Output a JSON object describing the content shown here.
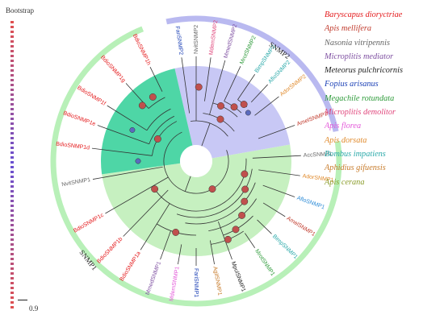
{
  "bootstrap_label": "Bootstrap",
  "scale_label": "0.9",
  "groups": [
    {
      "name": "SNMP2"
    },
    {
      "name": "SNMP1"
    }
  ],
  "colors": {
    "red": "#e41a1c",
    "darkred": "#c0392b",
    "gray": "#666666",
    "purple": "#7e4fa1",
    "black": "#222222",
    "blue": "#1a3fb5",
    "green": "#2e9b3a",
    "magenta": "#e0457b",
    "pink": "#e357d9",
    "orange": "#e08a2c",
    "teal": "#2aa9a9",
    "brown": "#c77b2a",
    "olive": "#8a9c2a",
    "sector_snmp2": "#c8c8f5",
    "sector_teal": "#4ed6a6",
    "sector_snmp1": "#c6f0c0",
    "ring_snmp2": "#b9b9f0",
    "ring_snmp1": "#b8f0b8",
    "node": "#c0504d",
    "node_blue": "#5b6bbf"
  },
  "legend": [
    {
      "label": "Baryscapus dioryctriae",
      "color": "#e41a1c"
    },
    {
      "label": "Apis mellifera",
      "color": "#c0392b"
    },
    {
      "label": "Nasonia vitripennis",
      "color": "#666666"
    },
    {
      "label": "Microplitis mediator",
      "color": "#7e4fa1"
    },
    {
      "label": "Meteorus pulchricornis",
      "color": "#222222"
    },
    {
      "label": "Fopius arisanus",
      "color": "#1a3fb5"
    },
    {
      "label": "Megachile rotundata",
      "color": "#2e9b3a"
    },
    {
      "label": "Microplitis demolitor",
      "color": "#e0457b"
    },
    {
      "label": "Apis florea",
      "color": "#e357d9"
    },
    {
      "label": "Apis dorsata",
      "color": "#e08a2c"
    },
    {
      "label": "Bombus impatiens",
      "color": "#2aa9a9"
    },
    {
      "label": "Aphidius gifuensis",
      "color": "#c77b2a"
    },
    {
      "label": "Apis cerana",
      "color": "#8a9c2a"
    }
  ],
  "leaves": [
    {
      "name": "FariSNMP2",
      "color": "#1a3fb5"
    },
    {
      "name": "NvitSNMP2",
      "color": "#666666"
    },
    {
      "name": "MdemSNMP2",
      "color": "#e0457b"
    },
    {
      "name": "MmedSNMP2",
      "color": "#7e4fa1"
    },
    {
      "name": "MrotSNMP2",
      "color": "#2e9b3a"
    },
    {
      "name": "BimpSNMP2",
      "color": "#2aa9a9"
    },
    {
      "name": "AfloSNMP2",
      "color": "#2aa9a9"
    },
    {
      "name": "AdorSNMP2",
      "color": "#e08a2c"
    },
    {
      "name": "AmelSNMP2",
      "color": "#c0392b"
    },
    {
      "name": "AccSNMP1",
      "color": "#666666"
    },
    {
      "name": "AdorSNMP1",
      "color": "#e08a2c"
    },
    {
      "name": "AfloSNMP1",
      "color": "#2a8ad6"
    },
    {
      "name": "AmelSNMP1",
      "color": "#c0392b"
    },
    {
      "name": "BimpSNMP1",
      "color": "#2aa9a9"
    },
    {
      "name": "MrotSNMP1",
      "color": "#2e9b3a"
    },
    {
      "name": "MpulSNMP1",
      "color": "#222222"
    },
    {
      "name": "AgifSNMP1",
      "color": "#c77b2a"
    },
    {
      "name": "FariSNMP1",
      "color": "#1a3fb5"
    },
    {
      "name": "MdemSNMP1",
      "color": "#e357d9"
    },
    {
      "name": "MmedSNMP1",
      "color": "#7e4fa1"
    },
    {
      "name": "BdioSNMP1a",
      "color": "#e41a1c"
    },
    {
      "name": "BdioSNMP1b",
      "color": "#e41a1c"
    },
    {
      "name": "BdioSNMP1c",
      "color": "#e41a1c"
    },
    {
      "name": "NvitSNMP1",
      "color": "#666666"
    },
    {
      "name": "BdioSNMP1d",
      "color": "#e41a1c"
    },
    {
      "name": "BdioSNMP1e",
      "color": "#e41a1c"
    },
    {
      "name": "BdioSNMP1f",
      "color": "#e41a1c"
    },
    {
      "name": "BdioSNMP1g",
      "color": "#e41a1c"
    },
    {
      "name": "BdioSNMP1h",
      "color": "#e41a1c"
    }
  ]
}
